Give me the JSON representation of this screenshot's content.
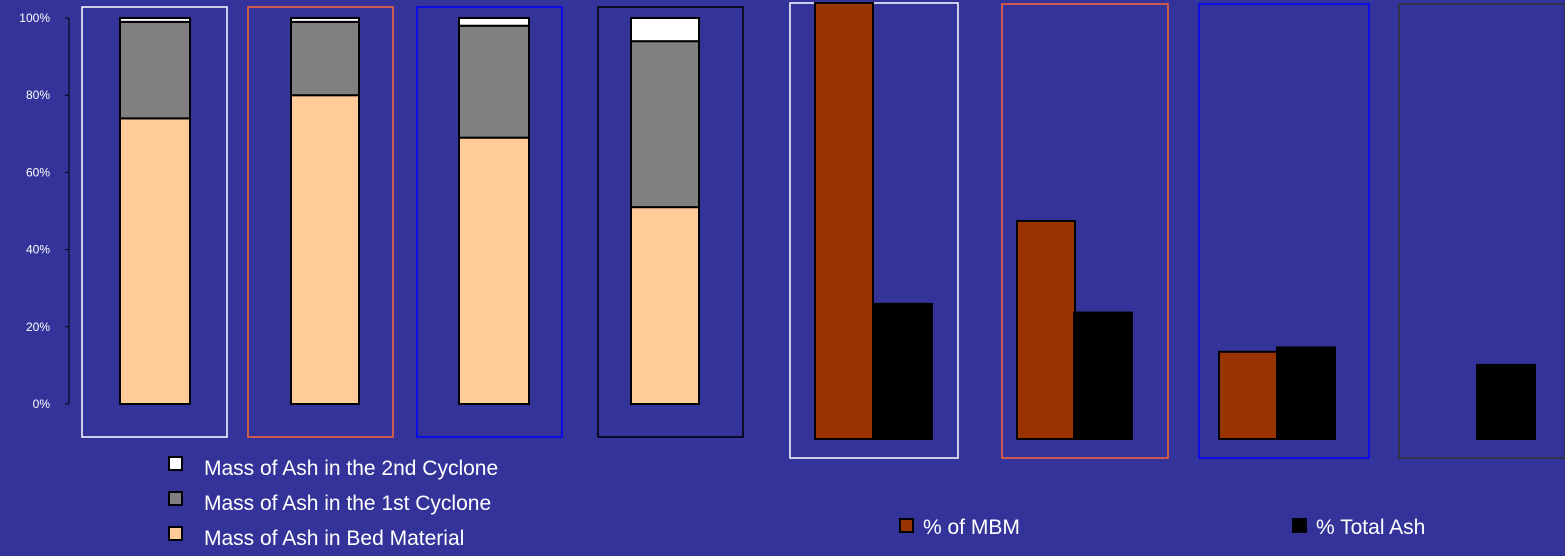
{
  "colors": {
    "background": "#333399",
    "bed": "#FFCC99",
    "cyclone1": "#808080",
    "cyclone2": "#FFFFFF",
    "mbm": "#993300",
    "total_ash": "#000000",
    "bar_outline": "#000000"
  },
  "chart_data": [
    {
      "type": "bar",
      "stacked": true,
      "percent_stacked": true,
      "title": "",
      "xlabel": "",
      "ylabel": "",
      "ylim": [
        0,
        100
      ],
      "y_ticks": [
        "0%",
        "20%",
        "40%",
        "60%",
        "80%",
        "100%"
      ],
      "categories": [
        "",
        "",
        "",
        ""
      ],
      "frame_colors": [
        "#FFFFFF",
        "#FF6633",
        "#0000FF",
        "#000000"
      ],
      "series": [
        {
          "name": "Mass of Ash in Bed Material",
          "color_key": "bed",
          "values": [
            74,
            80,
            69,
            51
          ]
        },
        {
          "name": "Mass of Ash in the 1st Cyclone",
          "color_key": "cyclone1",
          "values": [
            25,
            19,
            29,
            43
          ]
        },
        {
          "name": "Mass of Ash in the 2nd Cyclone",
          "color_key": "cyclone2",
          "values": [
            1,
            1,
            2,
            6
          ]
        }
      ],
      "legend_position": "bottom-left",
      "grid": false
    },
    {
      "type": "bar",
      "stacked": false,
      "title": "",
      "xlabel": "",
      "ylabel": "",
      "ylim": [
        0,
        100
      ],
      "categories": [
        "",
        "",
        "",
        ""
      ],
      "frame_colors": [
        "#FFFFFF",
        "#FF6633",
        "#0000FF",
        "#333333"
      ],
      "series": [
        {
          "name": "% of MBM",
          "color_key": "mbm",
          "values": [
            100,
            50,
            20,
            null
          ]
        },
        {
          "name": "% Total Ash",
          "color_key": "total_ash",
          "values": [
            31,
            29,
            21,
            17
          ]
        }
      ],
      "legend_position": "bottom",
      "grid": false
    }
  ],
  "legend_left": [
    {
      "label": "Mass of Ash in the 2nd Cyclone",
      "color_key": "cyclone2"
    },
    {
      "label": "Mass of Ash in the 1st Cyclone",
      "color_key": "cyclone1"
    },
    {
      "label": "Mass of Ash in Bed Material",
      "color_key": "bed"
    }
  ],
  "legend_right": [
    {
      "label": "% of MBM",
      "color_key": "mbm"
    },
    {
      "label": "% Total Ash",
      "color_key": "total_ash"
    }
  ]
}
